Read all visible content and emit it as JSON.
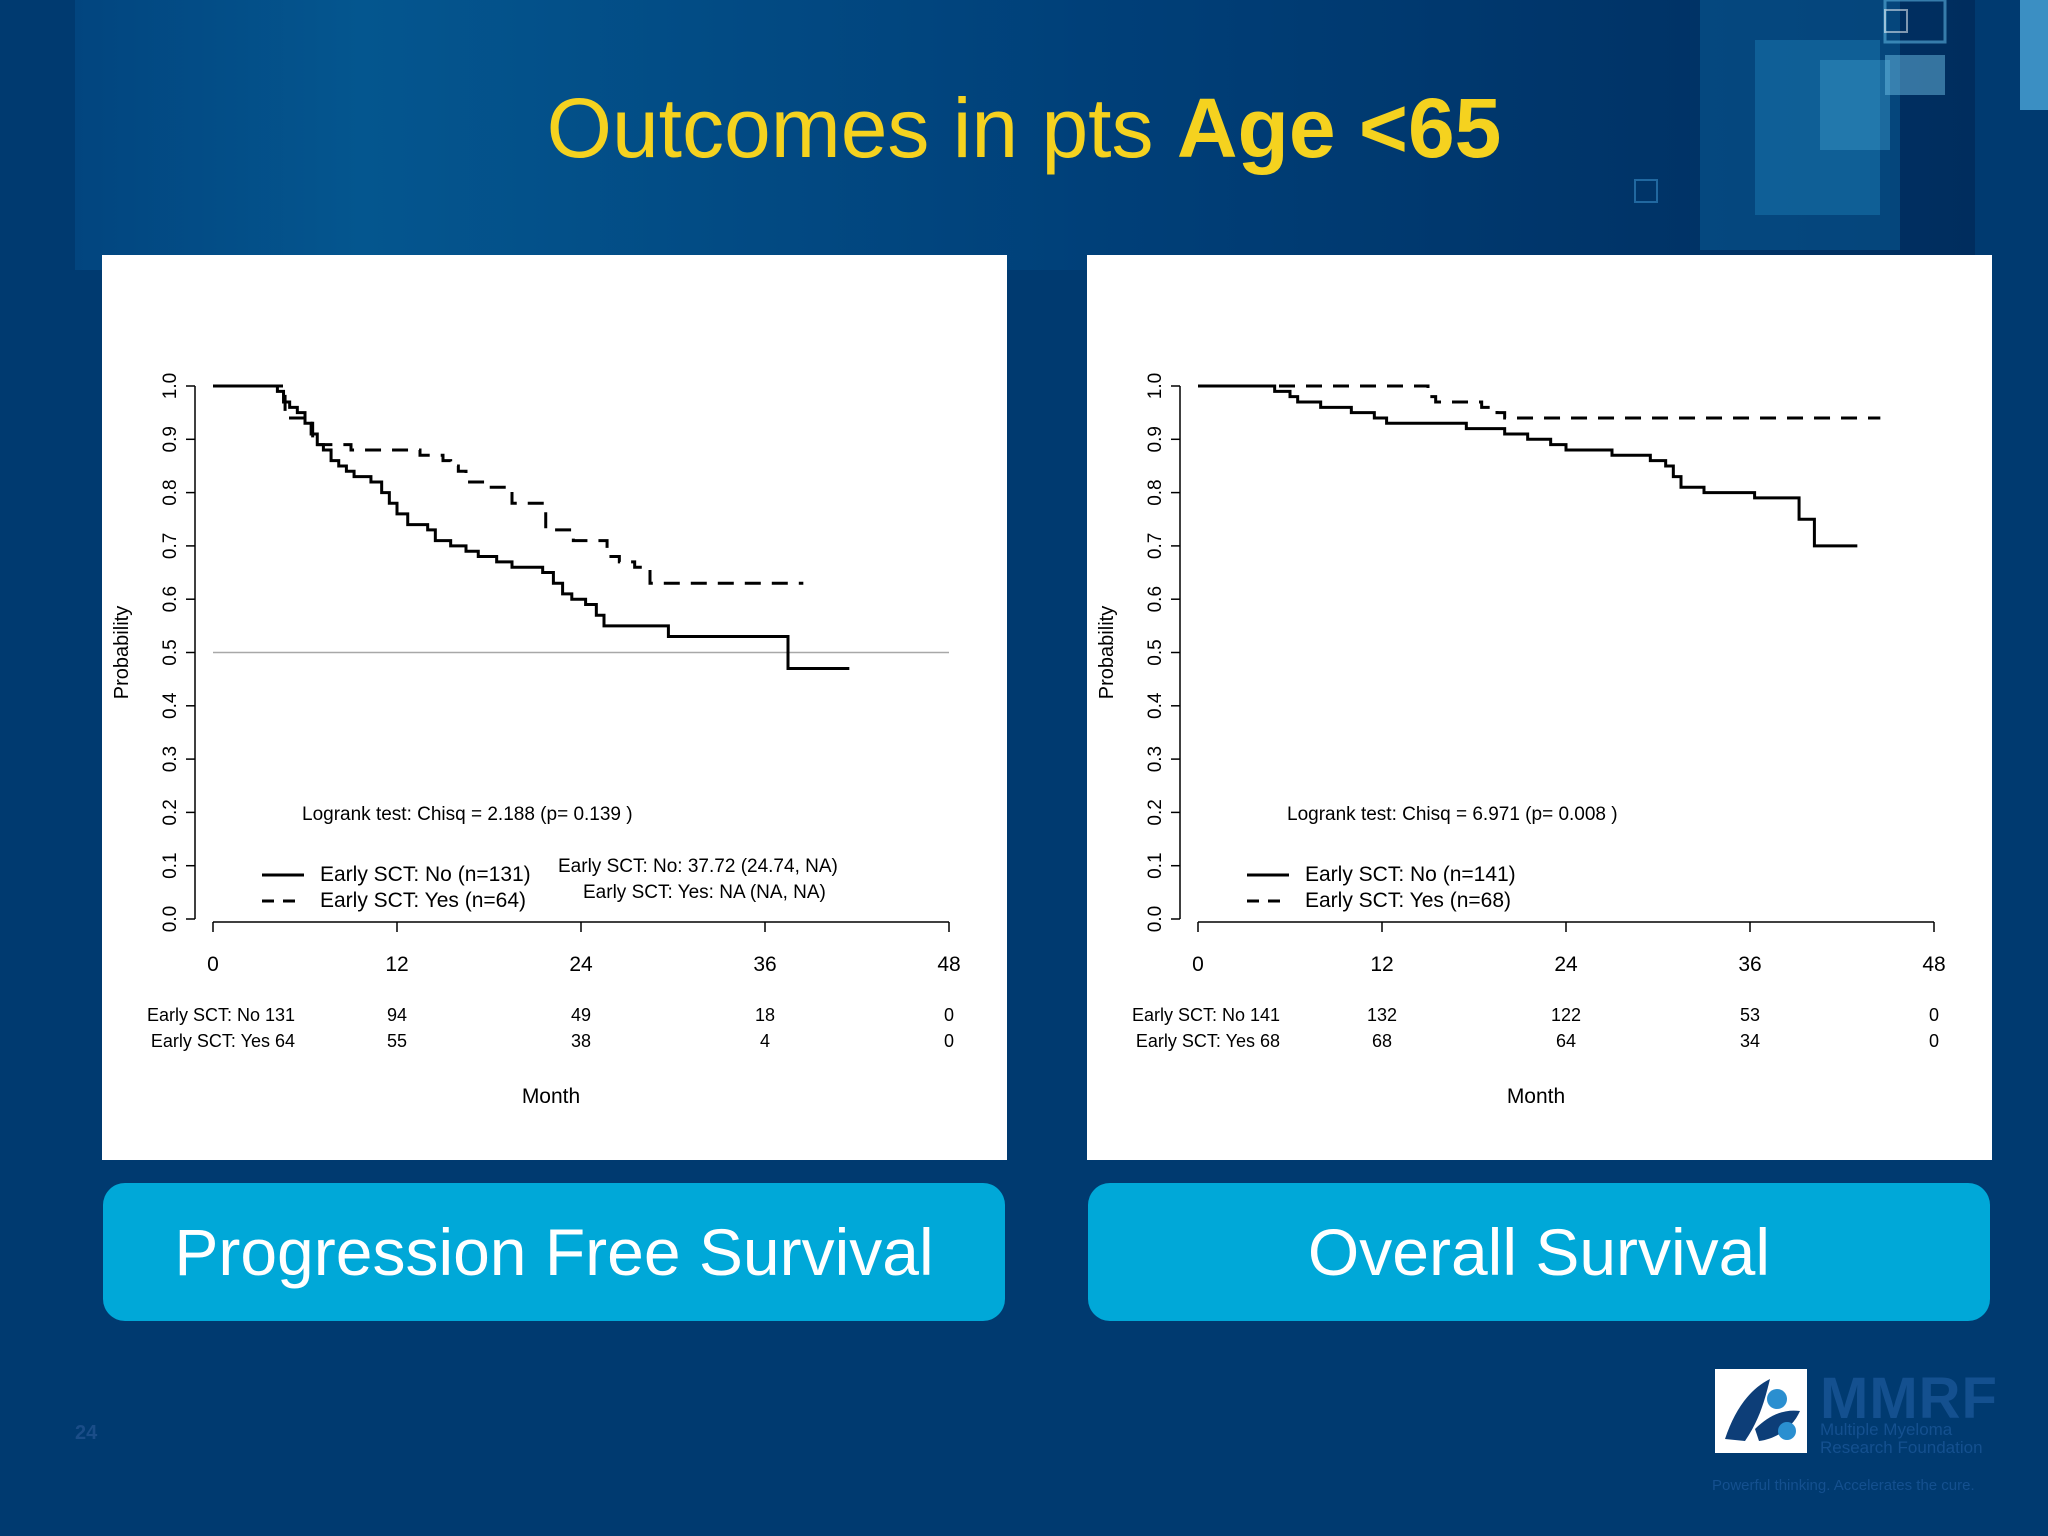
{
  "slide": {
    "title_plain": "Outcomes in pts ",
    "title_bold": "Age <65",
    "slide_number": "24",
    "logo": {
      "name": "MMRF",
      "sub_line1": "Multiple Myeloma",
      "sub_line2": "Research Foundation",
      "tagline": "Powerful thinking. Accelerates the cure."
    }
  },
  "chart_data": [
    {
      "type": "line",
      "caption": "Progression Free Survival",
      "xlabel": "Month",
      "ylabel": "Probability",
      "xlim": [
        0,
        48
      ],
      "ylim": [
        0,
        1
      ],
      "xticks": [
        "0",
        "12",
        "24",
        "36",
        "48"
      ],
      "yticks": [
        "0.0",
        "0.1",
        "0.2",
        "0.3",
        "0.4",
        "0.5",
        "0.6",
        "0.7",
        "0.8",
        "0.9",
        "1.0"
      ],
      "reference_line_y": 0.5,
      "annotation": "Logrank test: Chisq = 2.188 (p= 0.139 )",
      "median_label_1": "Early SCT: No: 37.72 (24.74,    NA)",
      "median_label_2": "Early SCT: Yes: NA (NA, NA)",
      "legend": [
        "Early SCT: No (n=131)",
        "Early SCT: Yes (n=64)"
      ],
      "series": [
        {
          "name": "Early SCT: No (n=131)",
          "dash": "solid",
          "points": [
            [
              0,
              1.0
            ],
            [
              3.8,
              1.0
            ],
            [
              4.2,
              0.99
            ],
            [
              4.6,
              0.97
            ],
            [
              5,
              0.96
            ],
            [
              5.5,
              0.95
            ],
            [
              6,
              0.93
            ],
            [
              6.4,
              0.91
            ],
            [
              6.8,
              0.89
            ],
            [
              7.2,
              0.88
            ],
            [
              7.7,
              0.86
            ],
            [
              8.2,
              0.85
            ],
            [
              8.7,
              0.84
            ],
            [
              9.2,
              0.83
            ],
            [
              10.3,
              0.82
            ],
            [
              11,
              0.8
            ],
            [
              11.5,
              0.78
            ],
            [
              12,
              0.76
            ],
            [
              12.7,
              0.74
            ],
            [
              14,
              0.73
            ],
            [
              14.5,
              0.71
            ],
            [
              15.5,
              0.7
            ],
            [
              16.5,
              0.69
            ],
            [
              17.3,
              0.68
            ],
            [
              18.5,
              0.67
            ],
            [
              19.5,
              0.66
            ],
            [
              21.5,
              0.65
            ],
            [
              22.2,
              0.63
            ],
            [
              22.8,
              0.61
            ],
            [
              23.4,
              0.6
            ],
            [
              24.3,
              0.59
            ],
            [
              25,
              0.57
            ],
            [
              25.5,
              0.55
            ],
            [
              29.7,
              0.55
            ],
            [
              29.7,
              0.53
            ],
            [
              37.5,
              0.53
            ],
            [
              37.5,
              0.47
            ],
            [
              41.5,
              0.47
            ]
          ]
        },
        {
          "name": "Early SCT: Yes (n=64)",
          "dash": "dashed",
          "points": [
            [
              0,
              1.0
            ],
            [
              4.5,
              1.0
            ],
            [
              4.7,
              0.94
            ],
            [
              6,
              0.93
            ],
            [
              6.5,
              0.89
            ],
            [
              7.5,
              0.89
            ],
            [
              9,
              0.88
            ],
            [
              13,
              0.88
            ],
            [
              13.5,
              0.87
            ],
            [
              15,
              0.86
            ],
            [
              15.5,
              0.85
            ],
            [
              16,
              0.84
            ],
            [
              16.5,
              0.82
            ],
            [
              18,
              0.81
            ],
            [
              19,
              0.81
            ],
            [
              19.5,
              0.78
            ],
            [
              21.5,
              0.78
            ],
            [
              21.7,
              0.73
            ],
            [
              23.3,
              0.73
            ],
            [
              23.5,
              0.71
            ],
            [
              25.5,
              0.71
            ],
            [
              25.7,
              0.68
            ],
            [
              26.5,
              0.67
            ],
            [
              27.5,
              0.66
            ],
            [
              28.5,
              0.63
            ],
            [
              38.5,
              0.63
            ]
          ]
        }
      ],
      "risk_table": {
        "rows": [
          {
            "label": "Early SCT: No 131",
            "values": [
              "94",
              "49",
              "18",
              "0"
            ]
          },
          {
            "label": "Early SCT: Yes 64",
            "values": [
              "55",
              "38",
              "4",
              "0"
            ]
          }
        ]
      }
    },
    {
      "type": "line",
      "caption": "Overall Survival",
      "xlabel": "Month",
      "ylabel": "Probability",
      "xlim": [
        0,
        48
      ],
      "ylim": [
        0,
        1
      ],
      "xticks": [
        "0",
        "12",
        "24",
        "36",
        "48"
      ],
      "yticks": [
        "0.0",
        "0.1",
        "0.2",
        "0.3",
        "0.4",
        "0.5",
        "0.6",
        "0.7",
        "0.8",
        "0.9",
        "1.0"
      ],
      "annotation": "Logrank test: Chisq = 6.971 (p= 0.008 )",
      "legend": [
        "Early SCT: No (n=141)",
        "Early SCT: Yes (n=68)"
      ],
      "series": [
        {
          "name": "Early SCT: No (n=141)",
          "dash": "solid",
          "points": [
            [
              0,
              1.0
            ],
            [
              4.8,
              1.0
            ],
            [
              5,
              0.99
            ],
            [
              6,
              0.98
            ],
            [
              6.5,
              0.97
            ],
            [
              8,
              0.96
            ],
            [
              9.5,
              0.96
            ],
            [
              10,
              0.95
            ],
            [
              11.5,
              0.94
            ],
            [
              12.3,
              0.93
            ],
            [
              17,
              0.93
            ],
            [
              17.5,
              0.92
            ],
            [
              19.5,
              0.92
            ],
            [
              20,
              0.91
            ],
            [
              21.5,
              0.9
            ],
            [
              23,
              0.89
            ],
            [
              24,
              0.88
            ],
            [
              26,
              0.88
            ],
            [
              27,
              0.87
            ],
            [
              29,
              0.87
            ],
            [
              29.5,
              0.86
            ],
            [
              30.5,
              0.85
            ],
            [
              31,
              0.83
            ],
            [
              31.5,
              0.81
            ],
            [
              33,
              0.8
            ],
            [
              36,
              0.8
            ],
            [
              36.3,
              0.79
            ],
            [
              39,
              0.79
            ],
            [
              39.2,
              0.75
            ],
            [
              40,
              0.75
            ],
            [
              40.2,
              0.7
            ],
            [
              43,
              0.7
            ]
          ]
        },
        {
          "name": "Early SCT: Yes (n=68)",
          "dash": "dashed",
          "points": [
            [
              0,
              1.0
            ],
            [
              14.5,
              1.0
            ],
            [
              15,
              0.98
            ],
            [
              15.5,
              0.97
            ],
            [
              18.5,
              0.96
            ],
            [
              19.5,
              0.95
            ],
            [
              20,
              0.94
            ],
            [
              44.5,
              0.94
            ]
          ]
        }
      ],
      "risk_table": {
        "rows": [
          {
            "label": "Early SCT: No 141",
            "values": [
              "132",
              "122",
              "53",
              "0"
            ]
          },
          {
            "label": "Early SCT: Yes 68",
            "values": [
              "68",
              "64",
              "34",
              "0"
            ]
          }
        ]
      }
    }
  ]
}
